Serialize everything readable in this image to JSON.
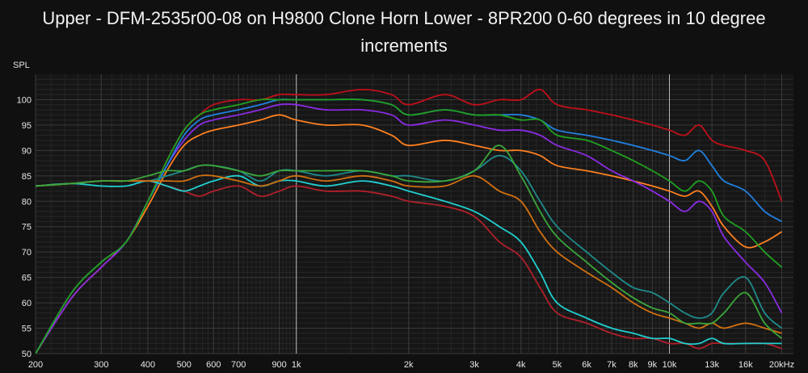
{
  "title": "Upper - DFM-2535r00-08 on H9800 Clone Horn Lower - 8PR200 0-60 degrees in 10 degree increments",
  "colors": {
    "background": "#101010",
    "plot_background": "#161616",
    "grid_major": "#3a3a3a",
    "grid_minor": "#262626",
    "grid_highlight": "#bdbdbd"
  },
  "chart_data": {
    "type": "line",
    "title": "Upper - DFM-2535r00-08 on H9800 Clone Horn Lower - 8PR200 0-60 degrees in 10 degree increments",
    "ylabel": "SPL",
    "xlabel": "",
    "xscale": "log",
    "xlim": [
      200,
      21500
    ],
    "ylim": [
      50,
      105
    ],
    "grid": true,
    "x_ticks": [
      200,
      300,
      400,
      500,
      600,
      700,
      900,
      1000,
      2000,
      3000,
      4000,
      5000,
      6000,
      7000,
      8000,
      9000,
      10000,
      13000,
      16000,
      20000
    ],
    "x_tick_labels": [
      "200",
      "300",
      "400",
      "500",
      "600",
      "700",
      "900",
      "1k",
      "2k",
      "3k",
      "4k",
      "5k",
      "6k",
      "7k",
      "8k",
      "9k",
      "10k",
      "13k",
      "16k",
      "20kHz"
    ],
    "y_ticks": [
      50,
      55,
      60,
      65,
      70,
      75,
      80,
      85,
      90,
      95,
      100
    ],
    "series": [
      {
        "color": "#c0101a",
        "x": [
          200,
          250,
          300,
          350,
          400,
          450,
          500,
          550,
          600,
          700,
          800,
          900,
          1000,
          1200,
          1500,
          1800,
          2000,
          2500,
          3000,
          3500,
          4000,
          4500,
          5000,
          6000,
          7000,
          8000,
          9000,
          10000,
          11000,
          12000,
          13000,
          14000,
          16000,
          18000,
          20000
        ],
        "y": [
          50,
          62,
          68,
          72,
          80,
          88,
          94,
          97,
          99,
          100,
          100,
          101,
          101,
          101,
          102,
          101,
          99,
          101,
          99,
          100,
          100,
          102,
          99,
          98,
          97,
          96,
          95,
          94,
          93,
          95,
          92,
          91,
          90,
          88,
          80
        ]
      },
      {
        "color": "#ff8020",
        "x": [
          200,
          250,
          300,
          350,
          400,
          450,
          500,
          550,
          600,
          700,
          800,
          900,
          1000,
          1200,
          1500,
          1800,
          2000,
          2500,
          3000,
          3500,
          4000,
          4500,
          5000,
          6000,
          7000,
          8000,
          9000,
          10000,
          11000,
          12000,
          13000,
          14000,
          16000,
          18000,
          20000
        ],
        "y": [
          50,
          61,
          67,
          72,
          79,
          86,
          91,
          93,
          94,
          95,
          96,
          97,
          96,
          95,
          95,
          93,
          91,
          92,
          91,
          90,
          90,
          89,
          87,
          86,
          85,
          84,
          83,
          82,
          81,
          82,
          79,
          75,
          71,
          72,
          74
        ]
      },
      {
        "color": "#8a2be2",
        "x": [
          200,
          250,
          300,
          350,
          400,
          450,
          500,
          550,
          600,
          700,
          800,
          900,
          1000,
          1200,
          1500,
          1800,
          2000,
          2500,
          3000,
          3500,
          4000,
          4500,
          5000,
          6000,
          7000,
          8000,
          9000,
          10000,
          11000,
          12000,
          13000,
          14000,
          16000,
          18000,
          20000
        ],
        "y": [
          50,
          61,
          67,
          72,
          80,
          87,
          92,
          95,
          96,
          97,
          98,
          99,
          99,
          98,
          98,
          97,
          95,
          96,
          95,
          94,
          94,
          93,
          91,
          89,
          86,
          84,
          82,
          80,
          78,
          80,
          78,
          73,
          68,
          64,
          58
        ]
      },
      {
        "color": "#2080e0",
        "x": [
          200,
          250,
          300,
          350,
          400,
          450,
          500,
          550,
          600,
          700,
          800,
          900,
          1000,
          1200,
          1500,
          1800,
          2000,
          2500,
          3000,
          3500,
          4000,
          4500,
          5000,
          6000,
          7000,
          8000,
          9000,
          10000,
          11000,
          12000,
          13000,
          14000,
          16000,
          18000,
          20000
        ],
        "y": [
          50,
          62,
          68,
          72,
          80,
          87,
          93,
          96,
          97,
          98,
          99,
          100,
          100,
          100,
          100,
          99,
          97,
          98,
          97,
          97,
          97,
          96,
          94,
          93,
          92,
          91,
          90,
          89,
          88,
          90,
          87,
          84,
          82,
          78,
          76
        ]
      },
      {
        "color": "#20a020",
        "x": [
          200,
          250,
          300,
          350,
          400,
          450,
          500,
          550,
          600,
          700,
          800,
          900,
          1000,
          1200,
          1500,
          1800,
          2000,
          2500,
          3000,
          3500,
          4000,
          4500,
          5000,
          6000,
          7000,
          8000,
          9000,
          10000,
          11000,
          12000,
          13000,
          14000,
          16000,
          18000,
          20000
        ],
        "y": [
          50,
          62,
          68,
          72,
          80,
          88,
          94,
          97,
          98,
          99,
          100,
          100,
          100,
          100,
          100,
          99,
          97,
          98,
          97,
          97,
          96,
          96,
          93,
          92,
          90,
          88,
          86,
          84,
          82,
          84,
          82,
          77,
          74,
          70,
          67
        ]
      },
      {
        "color": "#b0202a",
        "x": [
          200,
          250,
          300,
          350,
          400,
          450,
          500,
          550,
          600,
          700,
          800,
          900,
          1000,
          1200,
          1500,
          1800,
          2000,
          2500,
          3000,
          3500,
          4000,
          4500,
          5000,
          6000,
          7000,
          8000,
          9000,
          10000,
          11000,
          12000,
          13000,
          14000,
          16000,
          18000,
          20000
        ],
        "y": [
          83,
          83.5,
          84,
          84,
          84,
          83,
          82,
          81,
          82,
          83,
          81,
          82,
          83,
          82,
          82,
          81,
          80,
          79,
          77,
          72,
          69,
          63,
          58,
          56,
          54,
          53,
          53,
          52,
          52,
          51,
          52,
          52,
          52,
          52,
          51
        ]
      },
      {
        "color": "#20d0d0",
        "x": [
          200,
          250,
          300,
          350,
          400,
          450,
          500,
          550,
          600,
          700,
          800,
          900,
          1000,
          1200,
          1500,
          1800,
          2000,
          2500,
          3000,
          3500,
          4000,
          4500,
          5000,
          6000,
          7000,
          8000,
          9000,
          10000,
          11000,
          12000,
          13000,
          14000,
          16000,
          18000,
          20000
        ],
        "y": [
          83,
          83.5,
          83,
          83,
          84,
          83,
          82,
          83,
          84,
          85,
          83,
          84,
          84,
          83,
          84,
          83,
          82,
          80,
          78,
          75,
          72,
          66,
          60,
          57,
          55,
          54,
          53,
          53,
          52,
          52,
          53,
          52,
          52,
          52,
          52
        ]
      },
      {
        "color": "#1f8a8a",
        "x": [
          200,
          250,
          300,
          350,
          400,
          450,
          500,
          550,
          600,
          700,
          800,
          900,
          1000,
          1200,
          1500,
          1800,
          2000,
          2500,
          3000,
          3500,
          4000,
          4500,
          5000,
          6000,
          7000,
          8000,
          9000,
          10000,
          11000,
          12000,
          13000,
          14000,
          16000,
          18000,
          20000
        ],
        "y": [
          83,
          83.5,
          84,
          84,
          84,
          85,
          86,
          87,
          87,
          86,
          84,
          86,
          86,
          85,
          86,
          85,
          85,
          84,
          86,
          89,
          86,
          80,
          75,
          70,
          66,
          63,
          62,
          60,
          58,
          57,
          58,
          62,
          65,
          58,
          55
        ]
      },
      {
        "color": "#d07010",
        "x": [
          200,
          250,
          300,
          350,
          400,
          450,
          500,
          550,
          600,
          700,
          800,
          900,
          1000,
          1200,
          1500,
          1800,
          2000,
          2500,
          3000,
          3500,
          4000,
          4500,
          5000,
          6000,
          7000,
          8000,
          9000,
          10000,
          11000,
          12000,
          13000,
          14000,
          16000,
          18000,
          20000
        ],
        "y": [
          83,
          83.5,
          84,
          84,
          84,
          84,
          84,
          85,
          85,
          84,
          83,
          84,
          85,
          84,
          85,
          84,
          83,
          83,
          85,
          82,
          80,
          74,
          70,
          66,
          63,
          60,
          58,
          57,
          56,
          55,
          56,
          55,
          56,
          55,
          54
        ]
      },
      {
        "color": "#3aa83a",
        "x": [
          200,
          250,
          300,
          350,
          400,
          450,
          500,
          550,
          600,
          700,
          800,
          900,
          1000,
          1200,
          1500,
          1800,
          2000,
          2500,
          3000,
          3500,
          4000,
          4500,
          5000,
          6000,
          7000,
          8000,
          9000,
          10000,
          11000,
          12000,
          13000,
          14000,
          16000,
          18000,
          20000
        ],
        "y": [
          83,
          83.5,
          84,
          84,
          85,
          86,
          86,
          87,
          87,
          86,
          85,
          86,
          86,
          86,
          86,
          85,
          84,
          84,
          86,
          91,
          85,
          78,
          73,
          68,
          64,
          61,
          59,
          58,
          56,
          56,
          56,
          58,
          62,
          56,
          53
        ]
      }
    ]
  }
}
